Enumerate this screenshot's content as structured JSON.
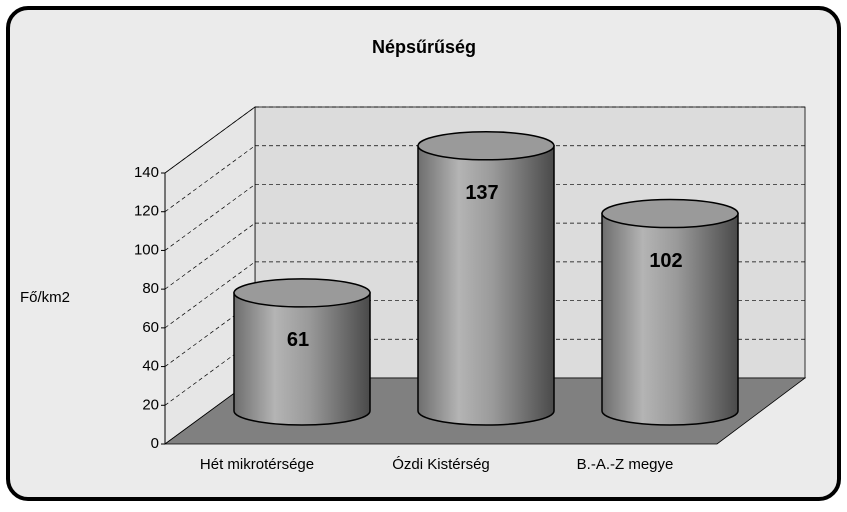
{
  "chart_data": {
    "type": "bar3d",
    "title": "Népsűrűség",
    "y_label": "Fő/km2",
    "categories": [
      "Hét mikrotérsége",
      "Ózdi Kistérség",
      "B.-A.-Z megye"
    ],
    "values": [
      61,
      137,
      102
    ],
    "color": "#9a9a9a",
    "ylim": [
      0,
      140
    ],
    "yticks": [
      0,
      20,
      40,
      60,
      80,
      100,
      120,
      140
    ],
    "grid": true
  }
}
